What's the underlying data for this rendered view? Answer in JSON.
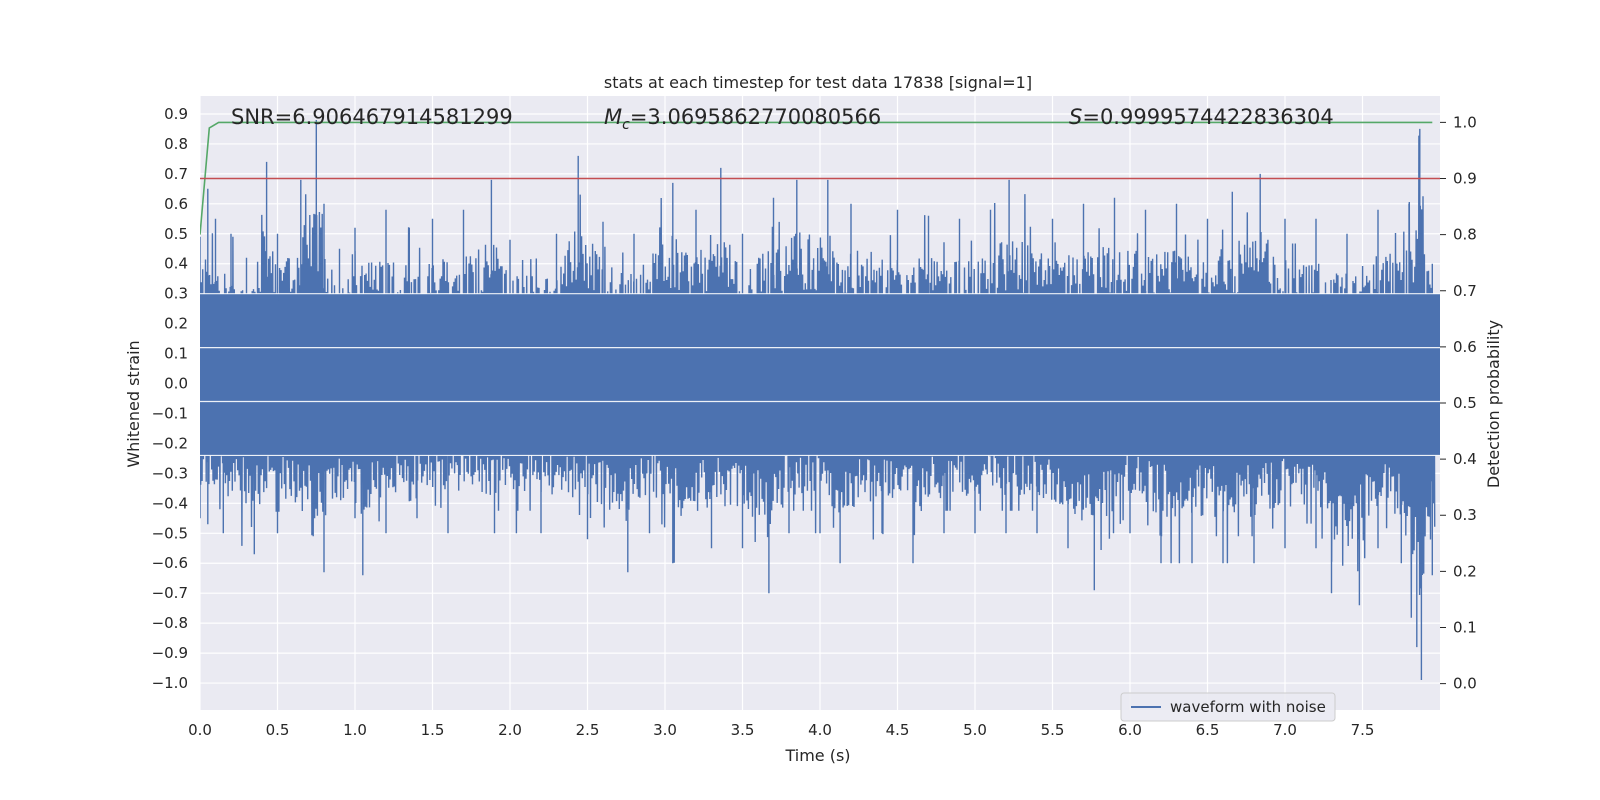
{
  "chart_data": {
    "type": "line",
    "title": "stats at each timestep for test data 17838 [signal=1]",
    "xlabel": "Time (s)",
    "ylabel": "Whitened strain",
    "y2label": "Detection probability",
    "xlim": [
      0.0,
      8.0
    ],
    "ylim": [
      -1.09,
      0.96
    ],
    "y2lim": [
      -0.047,
      1.047
    ],
    "x_ticks": [
      "0.0",
      "0.5",
      "1.0",
      "1.5",
      "2.0",
      "2.5",
      "3.0",
      "3.5",
      "4.0",
      "4.5",
      "5.0",
      "5.5",
      "6.0",
      "6.5",
      "7.0",
      "7.5"
    ],
    "y_ticks": [
      "0.9",
      "0.8",
      "0.7",
      "0.6",
      "0.5",
      "0.4",
      "0.3",
      "0.2",
      "0.1",
      "0.0",
      "−0.1",
      "−0.2",
      "−0.3",
      "−0.4",
      "−0.5",
      "−0.6",
      "−0.7",
      "−0.8",
      "−0.9",
      "−1.0"
    ],
    "y2_ticks": [
      "1.0",
      "0.9",
      "0.8",
      "0.7",
      "0.6",
      "0.5",
      "0.4",
      "0.3",
      "0.2",
      "0.1",
      "0.0"
    ],
    "annotations": {
      "snr": "SNR=6.906467914581299",
      "mc_symbol": "M",
      "mc_sub": "c",
      "mc_value": "=3.0695862770080566",
      "s_symbol": "S",
      "s_value": "=0.9999574422836304"
    },
    "legend": {
      "label": "waveform with noise",
      "placement": "lower-right"
    },
    "grid": true,
    "series": [
      {
        "name": "waveform with noise",
        "axis": "left",
        "color": "#4c72b0",
        "envelope_upper": [
          [
            0.0,
            0.49
          ],
          [
            0.05,
            0.65
          ],
          [
            0.1,
            0.55
          ],
          [
            0.2,
            0.5
          ],
          [
            0.3,
            0.42
          ],
          [
            0.43,
            0.74
          ],
          [
            0.5,
            0.5
          ],
          [
            0.65,
            0.68
          ],
          [
            0.75,
            0.88
          ],
          [
            0.8,
            0.6
          ],
          [
            0.9,
            0.45
          ],
          [
            1.0,
            0.52
          ],
          [
            1.2,
            0.58
          ],
          [
            1.35,
            0.52
          ],
          [
            1.5,
            0.55
          ],
          [
            1.7,
            0.58
          ],
          [
            1.88,
            0.68
          ],
          [
            2.0,
            0.48
          ],
          [
            2.3,
            0.5
          ],
          [
            2.44,
            0.76
          ],
          [
            2.6,
            0.54
          ],
          [
            2.8,
            0.5
          ],
          [
            3.05,
            0.67
          ],
          [
            3.2,
            0.58
          ],
          [
            3.36,
            0.72
          ],
          [
            3.5,
            0.5
          ],
          [
            3.7,
            0.62
          ],
          [
            3.85,
            0.68
          ],
          [
            4.05,
            0.68
          ],
          [
            4.2,
            0.6
          ],
          [
            4.5,
            0.58
          ],
          [
            4.7,
            0.56
          ],
          [
            4.9,
            0.55
          ],
          [
            5.1,
            0.58
          ],
          [
            5.22,
            0.68
          ],
          [
            5.5,
            0.55
          ],
          [
            5.7,
            0.6
          ],
          [
            5.9,
            0.62
          ],
          [
            6.1,
            0.58
          ],
          [
            6.3,
            0.6
          ],
          [
            6.5,
            0.55
          ],
          [
            6.66,
            0.64
          ],
          [
            6.84,
            0.7
          ],
          [
            7.0,
            0.55
          ],
          [
            7.2,
            0.55
          ],
          [
            7.4,
            0.5
          ],
          [
            7.6,
            0.58
          ],
          [
            7.8,
            0.6
          ],
          [
            7.87,
            0.85
          ],
          [
            7.95,
            0.4
          ]
        ],
        "envelope_lower": [
          [
            0.0,
            -0.45
          ],
          [
            0.05,
            -0.47
          ],
          [
            0.15,
            -0.5
          ],
          [
            0.35,
            -0.57
          ],
          [
            0.5,
            -0.5
          ],
          [
            0.8,
            -0.63
          ],
          [
            1.0,
            -0.45
          ],
          [
            1.05,
            -0.64
          ],
          [
            1.2,
            -0.5
          ],
          [
            1.4,
            -0.45
          ],
          [
            1.6,
            -0.5
          ],
          [
            1.9,
            -0.5
          ],
          [
            2.2,
            -0.5
          ],
          [
            2.5,
            -0.52
          ],
          [
            2.76,
            -0.63
          ],
          [
            2.9,
            -0.5
          ],
          [
            3.05,
            -0.6
          ],
          [
            3.3,
            -0.55
          ],
          [
            3.5,
            -0.55
          ],
          [
            3.67,
            -0.7
          ],
          [
            3.8,
            -0.5
          ],
          [
            4.0,
            -0.5
          ],
          [
            4.13,
            -0.6
          ],
          [
            4.4,
            -0.5
          ],
          [
            4.6,
            -0.6
          ],
          [
            4.8,
            -0.5
          ],
          [
            5.0,
            -0.5
          ],
          [
            5.2,
            -0.5
          ],
          [
            5.4,
            -0.5
          ],
          [
            5.6,
            -0.55
          ],
          [
            5.77,
            -0.69
          ],
          [
            6.0,
            -0.5
          ],
          [
            6.2,
            -0.6
          ],
          [
            6.4,
            -0.6
          ],
          [
            6.6,
            -0.6
          ],
          [
            6.8,
            -0.6
          ],
          [
            7.0,
            -0.55
          ],
          [
            7.2,
            -0.55
          ],
          [
            7.3,
            -0.7
          ],
          [
            7.48,
            -0.74
          ],
          [
            7.6,
            -0.55
          ],
          [
            7.75,
            -0.6
          ],
          [
            7.85,
            -0.88
          ],
          [
            7.88,
            -0.99
          ],
          [
            7.95,
            -0.64
          ]
        ]
      },
      {
        "name": "",
        "axis": "right",
        "color": "#55a868",
        "points": [
          [
            0.0,
            0.8
          ],
          [
            0.06,
            0.99
          ],
          [
            0.12,
            1.0
          ],
          [
            7.95,
            1.0
          ]
        ]
      },
      {
        "name": "",
        "axis": "right",
        "color": "#c44e52",
        "points": [
          [
            0.0,
            0.9
          ],
          [
            8.0,
            0.9
          ]
        ]
      }
    ]
  }
}
